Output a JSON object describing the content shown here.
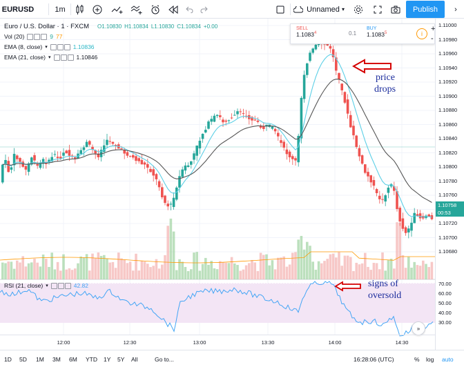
{
  "toolbar": {
    "symbol": "EURUSD",
    "interval": "1m",
    "layout_name": "Unnamed",
    "publish_label": "Publish"
  },
  "legend": {
    "title": "Euro / U.S. Dollar · 1 · FXCM",
    "ohlc": {
      "o": "O1.10830",
      "h": "H1.10834",
      "l": "L1.10830",
      "c": "C1.10834",
      "chg": "+0.00"
    },
    "vol": {
      "label": "Vol (20)",
      "v1": "9",
      "v2": "77"
    },
    "ema8": {
      "label": "EMA (8, close)",
      "value": "1.10836"
    },
    "ema21": {
      "label": "EMA (21, close)",
      "value": "1.10846"
    }
  },
  "trade": {
    "sell_label": "SELL",
    "sell_price": "1.1083",
    "sell_sup": "4",
    "spread": "0.1",
    "buy_label": "BUY",
    "buy_price": "1.1083",
    "buy_sup": "5"
  },
  "price_axis": {
    "labels": [
      "1.11000",
      "1.10980",
      "1.10960",
      "1.10940",
      "1.10920",
      "1.10900",
      "1.10880",
      "1.10860",
      "1.10840",
      "1.10820",
      "1.10800",
      "1.10780",
      "1.10760",
      "1.10740",
      "1.10720",
      "1.10700",
      "1.10680"
    ],
    "current_price": "1.10758",
    "countdown": "00:53"
  },
  "rsi": {
    "label": "RSI (21, close)",
    "value": "42.82",
    "axis_labels": [
      "70.00",
      "60.00",
      "50.00",
      "40.00",
      "30.00"
    ]
  },
  "annotations": {
    "price_drops": [
      "price",
      "drops"
    ],
    "oversold": [
      "signs of",
      "oversold"
    ]
  },
  "time_axis": [
    "12:00",
    "12:30",
    "13:00",
    "13:30",
    "14:00",
    "14:30"
  ],
  "bottombar": {
    "ranges": [
      "1D",
      "5D",
      "1M",
      "3M",
      "6M",
      "YTD",
      "1Y",
      "5Y",
      "All"
    ],
    "goto": "Go to...",
    "clock": "16:28:06 (UTC)",
    "percent": "%",
    "log": "log",
    "auto": "auto"
  },
  "chart_data": {
    "type": "candlestick",
    "series": [
      {
        "name": "EMA (8, close)",
        "color": "#5ccfe6"
      },
      {
        "name": "EMA (21, close)",
        "color": "#555555"
      }
    ],
    "ylim": [
      1.1067,
      1.11
    ],
    "rsi_ylim": [
      30,
      72
    ]
  },
  "colors": {
    "up": "#26a69a",
    "down": "#ef5350",
    "accent": "#2196f3",
    "rsi_bg": "#f3e5f5",
    "rsi_line": "#42a5f5",
    "annot": "#1a2b9c",
    "arrow": "#d50000"
  }
}
